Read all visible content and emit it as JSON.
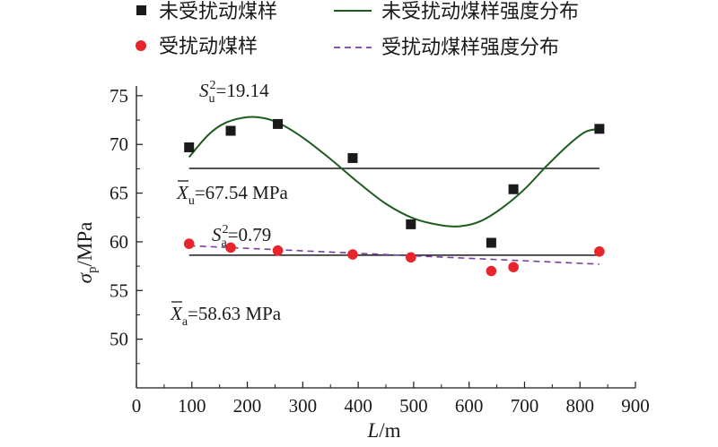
{
  "chart_data": {
    "type": "scatter",
    "xlabel": "L/m",
    "ylabel": "σp/MPa",
    "xlim": [
      0,
      900
    ],
    "ylim": [
      45,
      76
    ],
    "x_ticks": [
      0,
      100,
      200,
      300,
      400,
      500,
      600,
      700,
      800,
      900
    ],
    "y_ticks": [
      50,
      55,
      60,
      65,
      70,
      75
    ],
    "legend_position": "top",
    "series": [
      {
        "name": "未受扰动煤样",
        "kind": "points",
        "marker": "square",
        "color": "#1a1a1a",
        "x": [
          95,
          170,
          255,
          390,
          495,
          640,
          680,
          835
        ],
        "y": [
          69.7,
          71.4,
          72.1,
          68.6,
          61.8,
          59.9,
          65.4,
          71.6
        ]
      },
      {
        "name": "未受扰动煤样强度分布",
        "kind": "curve",
        "line_style": "solid",
        "color": "#1e5b1e",
        "x": [
          95,
          130,
          160,
          200,
          230,
          260,
          300,
          350,
          400,
          450,
          500,
          550,
          585,
          620,
          660,
          700,
          740,
          780,
          810,
          835
        ],
        "y": [
          68.7,
          71.0,
          72.2,
          72.8,
          72.7,
          72.1,
          70.7,
          68.5,
          66.1,
          63.9,
          62.4,
          61.7,
          61.6,
          62.1,
          63.5,
          65.4,
          67.8,
          70.0,
          71.3,
          71.6
        ]
      },
      {
        "name": "受扰动煤样",
        "kind": "points",
        "marker": "circle",
        "color": "#e8242c",
        "x": [
          95,
          170,
          255,
          390,
          495,
          640,
          680,
          835
        ],
        "y": [
          59.8,
          59.4,
          59.1,
          58.7,
          58.4,
          57.0,
          57.4,
          59.0
        ]
      },
      {
        "name": "受扰动煤样强度分布",
        "kind": "curve",
        "line_style": "dashed",
        "color": "#7a3ea0",
        "x": [
          95,
          835
        ],
        "y": [
          59.6,
          57.7
        ]
      }
    ],
    "reference_lines": [
      {
        "y": 67.54,
        "x_range": [
          95,
          835
        ],
        "color": "#1a1a1a"
      },
      {
        "y": 58.63,
        "x_range": [
          95,
          835
        ],
        "color": "#1a1a1a"
      }
    ],
    "annotations": [
      {
        "parts": [
          "S",
          "u",
          "2",
          "=19.14"
        ]
      },
      {
        "parts": [
          "X",
          "u",
          "=67.54 MPa"
        ]
      },
      {
        "parts": [
          "S",
          "a",
          "2",
          "=0.79"
        ]
      },
      {
        "parts": [
          "X",
          "a",
          "=58.63 MPa"
        ]
      }
    ]
  }
}
